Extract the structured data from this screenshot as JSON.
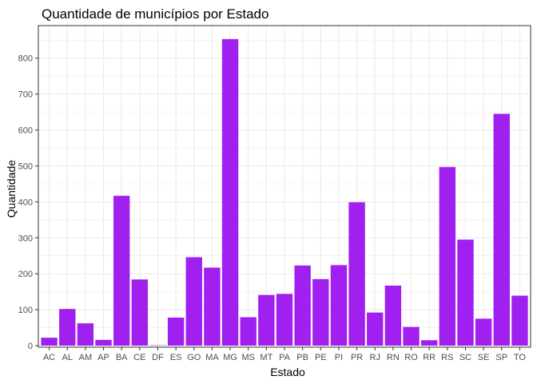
{
  "chart_data": {
    "type": "bar",
    "title": "Quantidade de municípios por Estado",
    "xlabel": "Estado",
    "ylabel": "Quantidade",
    "categories": [
      "AC",
      "AL",
      "AM",
      "AP",
      "BA",
      "CE",
      "DF",
      "ES",
      "GO",
      "MA",
      "MG",
      "MS",
      "MT",
      "PA",
      "PB",
      "PE",
      "PI",
      "PR",
      "RJ",
      "RN",
      "RO",
      "RR",
      "RS",
      "SC",
      "SE",
      "SP",
      "TO"
    ],
    "values": [
      22,
      102,
      62,
      16,
      417,
      184,
      1,
      78,
      246,
      217,
      853,
      79,
      141,
      144,
      223,
      185,
      224,
      399,
      92,
      167,
      52,
      15,
      497,
      295,
      75,
      645,
      139
    ],
    "ylim": [
      0,
      895
    ],
    "yticks": [
      0,
      100,
      200,
      300,
      400,
      500,
      600,
      700,
      800
    ],
    "bar_color": "#A020F0",
    "panel_background": "#FFFFFF",
    "grid_color": "#EBEBEB",
    "grid": true,
    "legend": "none"
  }
}
